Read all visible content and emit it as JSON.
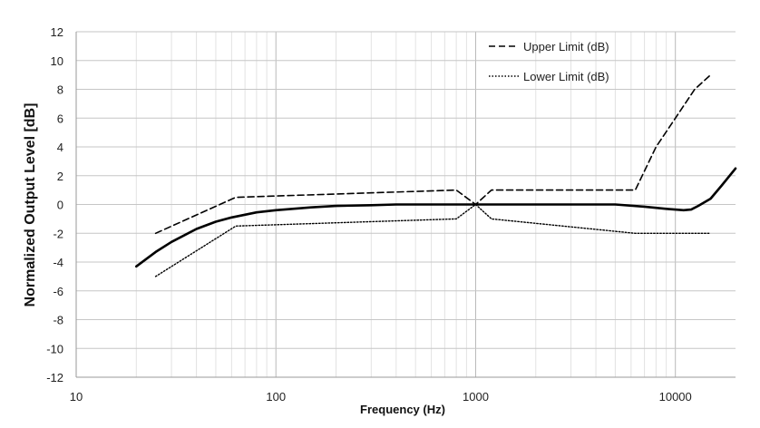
{
  "chart_data": {
    "type": "line",
    "xlabel": "Frequency (Hz)",
    "ylabel": "Normalized Output Level [dB]",
    "x_scale": "log",
    "xlim": [
      10,
      20000
    ],
    "ylim": [
      -12,
      12
    ],
    "x_ticks": [
      "10",
      "100",
      "1000",
      "10000"
    ],
    "y_ticks": [
      "-12",
      "-10",
      "-8",
      "-6",
      "-4",
      "-2",
      "0",
      "2",
      "4",
      "6",
      "8",
      "10",
      "12"
    ],
    "grid": true,
    "legend_position": "top-right",
    "series": [
      {
        "name": "Upper Limit (dB)",
        "style": "dashed",
        "color": "#000000",
        "x": [
          25,
          63,
          800,
          1000,
          1200,
          6300,
          8000,
          10000,
          12500,
          15000
        ],
        "y": [
          -2,
          0.5,
          1,
          0,
          1,
          1,
          4,
          6,
          8,
          9
        ]
      },
      {
        "name": "Lower Limit (dB)",
        "style": "dotted",
        "color": "#000000",
        "x": [
          25,
          63,
          800,
          1000,
          1200,
          6300,
          10000,
          15000
        ],
        "y": [
          -5,
          -1.5,
          -1,
          0,
          -1,
          -2,
          -2,
          -2
        ]
      },
      {
        "style": "solid",
        "color": "#000000",
        "x": [
          20,
          25,
          30,
          40,
          50,
          60,
          80,
          100,
          150,
          200,
          300,
          400,
          500,
          700,
          1000,
          1500,
          2000,
          3000,
          5000,
          7000,
          9000,
          11000,
          12000,
          13000,
          15000,
          17000,
          20000
        ],
        "y": [
          -4.3,
          -3.3,
          -2.6,
          -1.7,
          -1.2,
          -0.9,
          -0.55,
          -0.4,
          -0.2,
          -0.1,
          -0.05,
          0,
          0,
          0,
          0,
          0,
          0,
          0,
          0,
          -0.15,
          -0.3,
          -0.4,
          -0.35,
          -0.1,
          0.4,
          1.3,
          2.5
        ]
      }
    ]
  }
}
